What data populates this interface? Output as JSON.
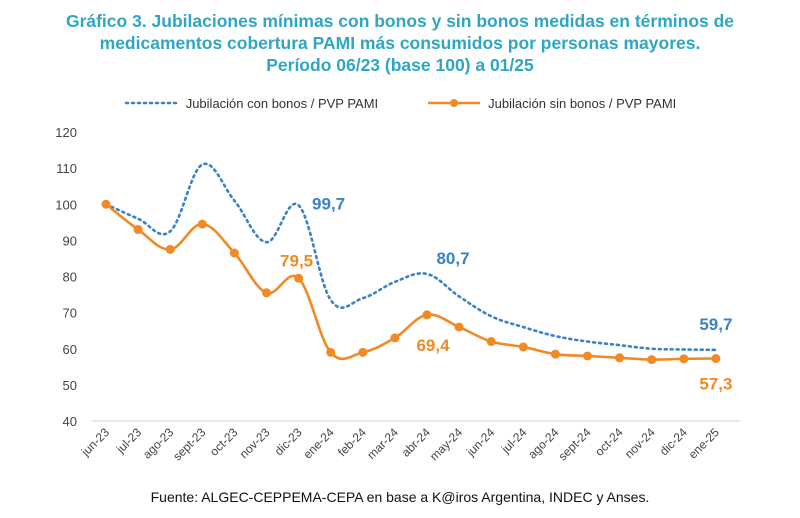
{
  "title_lines": [
    "Gráfico 3. Jubilaciones mínimas con bonos y sin bonos medidas en términos de",
    "medicamentos cobertura PAMI más consumidos por personas mayores.",
    "Período 06/23 (base 100) a 01/25"
  ],
  "source": "Fuente: ALGEC-CEPPEMA-CEPA en base a K@iros Argentina, INDEC y Anses.",
  "colors": {
    "title": "#2fa6c4",
    "con_bonos": "#3b82c4",
    "sin_bonos": "#f08a24",
    "axis_text": "#444444"
  },
  "chart_data": {
    "type": "line",
    "categories": [
      "jun-23",
      "jul-23",
      "ago-23",
      "sept-23",
      "oct-23",
      "nov-23",
      "dic-23",
      "ene-24",
      "feb-24",
      "mar-24",
      "abr-24",
      "may-24",
      "jun-24",
      "jul-24",
      "ago-24",
      "sept-24",
      "oct-24",
      "nov-24",
      "dic-24",
      "ene-25"
    ],
    "series": [
      {
        "name": "Jubilación con bonos / PVP PAMI",
        "style": "dotted",
        "color": "#3b82c4",
        "values": [
          100,
          96,
          92.5,
          111,
          101,
          89.5,
          99.7,
          73.5,
          74,
          78.5,
          80.7,
          74.5,
          69,
          66,
          63.5,
          62,
          61,
          60,
          59.8,
          59.7
        ],
        "annotations": [
          {
            "index": 6,
            "label": "99,7"
          },
          {
            "index": 10,
            "label": "80,7"
          },
          {
            "index": 19,
            "label": "59,7"
          }
        ]
      },
      {
        "name": "Jubilación sin bonos / PVP PAMI",
        "style": "solid-markers",
        "color": "#f08a24",
        "values": [
          100,
          93,
          87.5,
          94.5,
          86.5,
          75.5,
          79.5,
          59,
          59,
          63,
          69.4,
          66,
          62,
          60.5,
          58.5,
          58,
          57.5,
          57,
          57.2,
          57.3
        ],
        "annotations": [
          {
            "index": 6,
            "label": "79,5"
          },
          {
            "index": 10,
            "label": "69,4"
          },
          {
            "index": 19,
            "label": "57,3"
          }
        ]
      }
    ],
    "yticks": [
      40,
      50,
      60,
      70,
      80,
      90,
      100,
      110,
      120
    ],
    "ylim": [
      40,
      120
    ],
    "grid": false,
    "legend_position": "top"
  }
}
